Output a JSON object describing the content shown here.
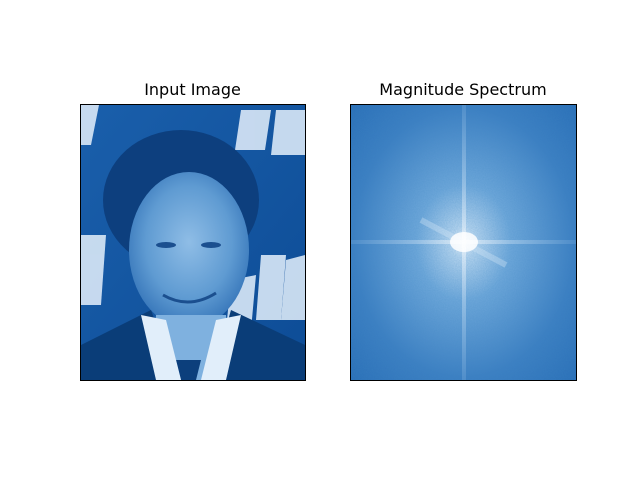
{
  "figure": {
    "panels": [
      {
        "title": "Input Image",
        "image": "portrait-photo-blue-tint"
      },
      {
        "title": "Magnitude Spectrum",
        "image": "fft-magnitude-spectrum"
      }
    ]
  },
  "colors": {
    "colormap_dark": "#0b4a93",
    "colormap_mid": "#3a7cc0",
    "colormap_light": "#e8f2fb",
    "frame": "#000000",
    "background": "#ffffff"
  }
}
